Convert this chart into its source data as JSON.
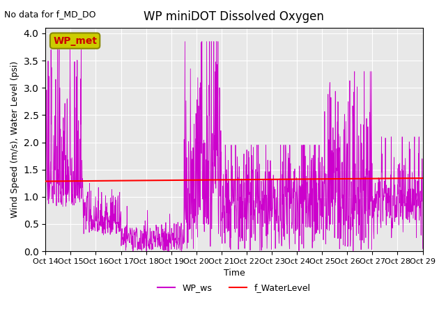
{
  "title": "WP miniDOT Dissolved Oxygen",
  "no_data_text": "No data for f_MD_DO",
  "ylabel": "Wind Speed (m/s), Water Level (psi)",
  "xlabel": "Time",
  "legend_box_label": "WP_met",
  "legend_box_color": "#cccc00",
  "legend_box_text_color": "#cc0000",
  "wp_ws_color": "#cc00cc",
  "f_water_level_color": "#ff0000",
  "bg_color": "#e8e8e8",
  "ylim": [
    0.0,
    4.1
  ],
  "yticks": [
    0.0,
    0.5,
    1.0,
    1.5,
    2.0,
    2.5,
    3.0,
    3.5,
    4.0
  ],
  "x_tick_labels": [
    "Oct 14",
    "Oct 15",
    "Oct 16",
    "Oct 17",
    "Oct 18",
    "Oct 19",
    "Oct 20",
    "Oct 21",
    "Oct 22",
    "Oct 23",
    "Oct 24",
    "Oct 25",
    "Oct 26",
    "Oct 27",
    "Oct 28",
    "Oct 29"
  ],
  "water_level_value": 1.285,
  "water_level_slope": 4e-05,
  "seed": 42,
  "n_points": 1440,
  "legend_entries": [
    "WP_ws",
    "f_WaterLevel"
  ],
  "legend_colors": [
    "#cc00cc",
    "#ff0000"
  ]
}
